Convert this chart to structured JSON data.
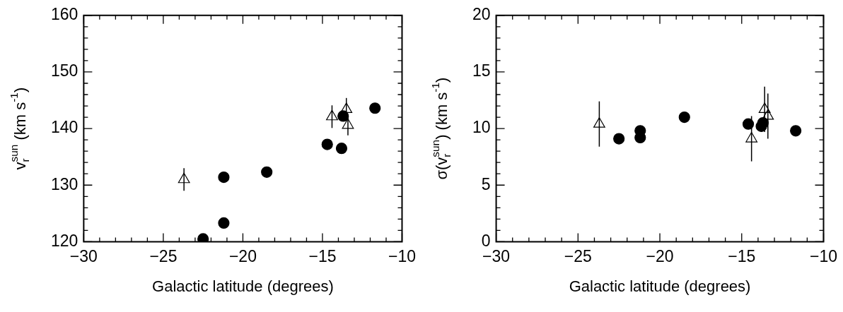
{
  "chart_data": [
    {
      "type": "scatter",
      "xlabel": "Galactic latitude (degrees)",
      "ylabel": "v$_{r}$$^{sun}$ (km s$^{-1}$)",
      "xlim": [
        -30,
        -10
      ],
      "xticks": [
        -30,
        -25,
        -20,
        -15,
        -10
      ],
      "ylim": [
        120,
        160
      ],
      "yticks": [
        120,
        130,
        140,
        150,
        160
      ],
      "grid": false,
      "legend": false,
      "series": [
        {
          "color": "#000000",
          "marker": "circle",
          "x": [
            -22.5,
            -21.2,
            -21.2,
            -18.5,
            -14.7,
            -13.8,
            -13.7,
            -11.7
          ],
          "values": [
            120.5,
            123.3,
            131.4,
            132.3,
            137.2,
            136.5,
            142.2,
            143.6
          ]
        },
        {
          "color": "#000000",
          "marker": "triangle",
          "x": [
            -23.7,
            -14.4,
            -13.5,
            -13.4
          ],
          "values": [
            131.0,
            142.1,
            143.4,
            140.6
          ],
          "errors": [
            2.0,
            2.0,
            2.0,
            1.8
          ]
        }
      ]
    },
    {
      "type": "scatter",
      "xlabel": "Galactic latitude (degrees)",
      "ylabel": "σ(v$_{r}$$^{sun}$) (km s$^{-1}$)",
      "xlim": [
        -30,
        -10
      ],
      "xticks": [
        -30,
        -25,
        -20,
        -15,
        -10
      ],
      "ylim": [
        0,
        20
      ],
      "yticks": [
        0,
        5,
        10,
        15,
        20
      ],
      "grid": false,
      "legend": false,
      "series": [
        {
          "color": "#000000",
          "marker": "circle",
          "x": [
            -22.5,
            -21.2,
            -21.2,
            -18.5,
            -14.6,
            -13.8,
            -13.7,
            -11.7
          ],
          "values": [
            9.1,
            9.8,
            9.2,
            11.0,
            10.4,
            10.2,
            10.5,
            9.8
          ]
        },
        {
          "color": "#000000",
          "marker": "triangle",
          "x": [
            -23.7,
            -14.4,
            -13.6,
            -13.4
          ],
          "values": [
            10.4,
            9.1,
            11.7,
            11.1
          ],
          "errors": [
            2.0,
            2.0,
            2.0,
            2.0
          ]
        }
      ]
    }
  ]
}
